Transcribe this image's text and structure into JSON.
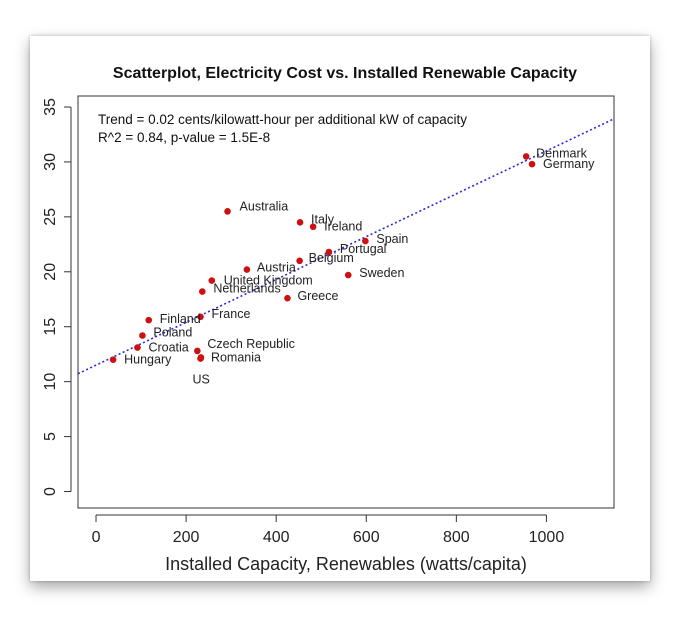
{
  "chart_data": {
    "type": "scatter",
    "title": "Scatterplot, Electricity Cost vs. Installed Renewable Capacity",
    "xlabel": "Installed Capacity, Renewables (watts/capita)",
    "ylabel": "",
    "xlim": [
      -40,
      1150
    ],
    "ylim": [
      -1.5,
      36
    ],
    "xticks": [
      0,
      200,
      400,
      600,
      800,
      1000
    ],
    "yticks": [
      0,
      5,
      10,
      15,
      20,
      25,
      30,
      35
    ],
    "annotations": [
      "Trend = 0.02 cents/kilowatt-hour per additional kW of capacity",
      "R^2 = 0.84, p-value = 1.5E-8"
    ],
    "trend": {
      "intercept": 11.5,
      "slope": 0.0195,
      "color": "#2b2bd6",
      "style": "dotted"
    },
    "point_color": "#cc1111",
    "points": [
      {
        "label": "Denmark",
        "x": 955,
        "y": 30.5
      },
      {
        "label": "Germany",
        "x": 968,
        "y": 29.8
      },
      {
        "label": "Australia",
        "x": 292,
        "y": 25.5
      },
      {
        "label": "Italy",
        "x": 453,
        "y": 24.5
      },
      {
        "label": "Ireland",
        "x": 482,
        "y": 24.1
      },
      {
        "label": "Spain",
        "x": 598,
        "y": 22.8
      },
      {
        "label": "Portugal",
        "x": 517,
        "y": 21.8
      },
      {
        "label": "Belgium",
        "x": 452,
        "y": 21.0
      },
      {
        "label": "Austria",
        "x": 335,
        "y": 20.2
      },
      {
        "label": "Sweden",
        "x": 560,
        "y": 19.7
      },
      {
        "label": "United Kingdom",
        "x": 257,
        "y": 19.2
      },
      {
        "label": "Netherlands",
        "x": 236,
        "y": 18.2
      },
      {
        "label": "Greece",
        "x": 425,
        "y": 17.6
      },
      {
        "label": "France",
        "x": 232,
        "y": 15.9
      },
      {
        "label": "Finland",
        "x": 117,
        "y": 15.6
      },
      {
        "label": "Poland",
        "x": 103,
        "y": 14.2
      },
      {
        "label": "Croatia",
        "x": 92,
        "y": 13.1
      },
      {
        "label": "Czech Republic",
        "x": 225,
        "y": 12.8
      },
      {
        "label": "Romania",
        "x": 233,
        "y": 12.2
      },
      {
        "label": "Hungary",
        "x": 38,
        "y": 12.0
      },
      {
        "label": "US",
        "x": 232,
        "y": 12.1
      }
    ]
  }
}
